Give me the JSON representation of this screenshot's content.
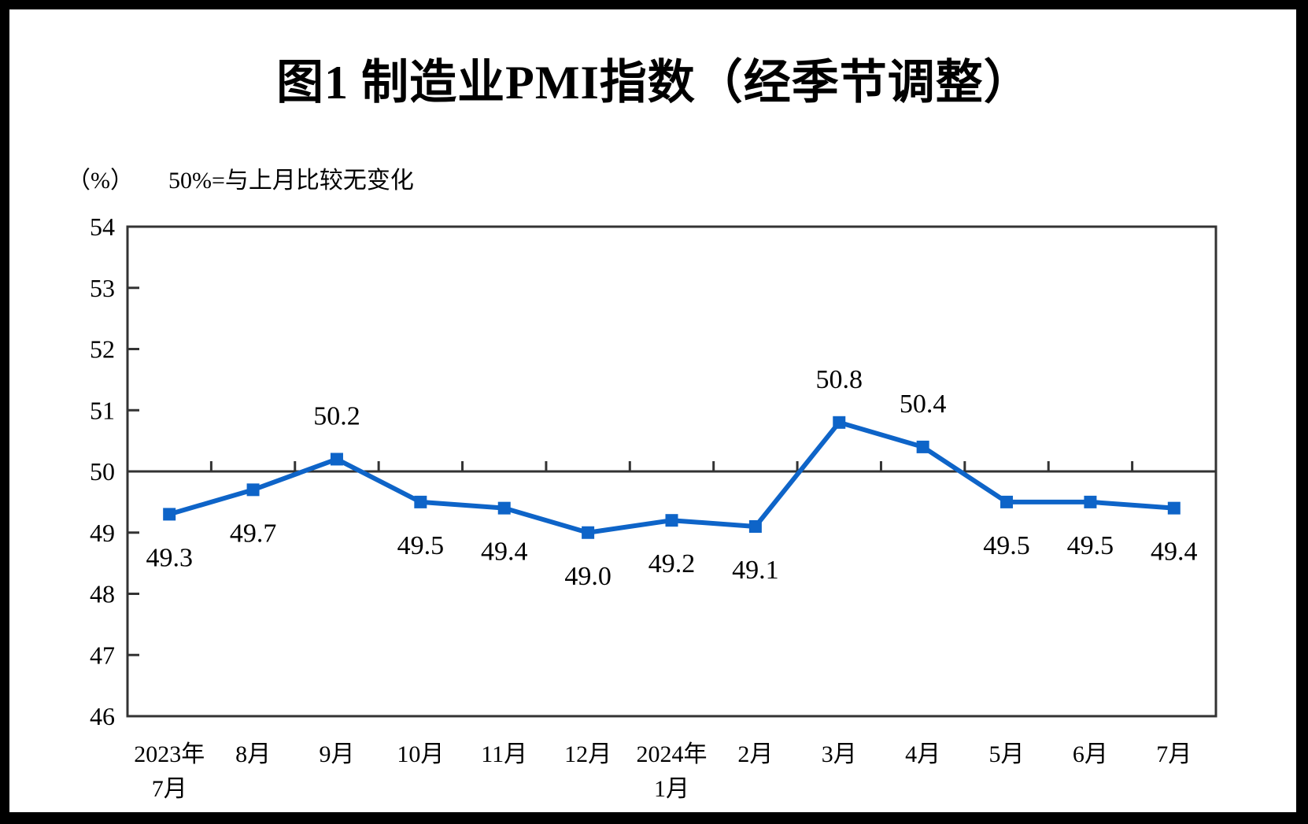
{
  "title": "图1  制造业PMI指数（经季节调整）",
  "subtitle": {
    "unit": "（%）",
    "note": "50%=与上月比较无变化"
  },
  "colors": {
    "line": "#0E64C8",
    "axis": "#333333",
    "text": "#000000",
    "background": "#FFFFFF",
    "outer_frame": "#000000"
  },
  "chart_data": {
    "type": "line",
    "title": "图1  制造业PMI指数（经季节调整）",
    "ylabel": "（%）",
    "annotation": "50%=与上月比较无变化",
    "categories": [
      [
        "2023年",
        "7月"
      ],
      [
        "8月"
      ],
      [
        "9月"
      ],
      [
        "10月"
      ],
      [
        "11月"
      ],
      [
        "12月"
      ],
      [
        "2024年",
        "1月"
      ],
      [
        "2月"
      ],
      [
        "3月"
      ],
      [
        "4月"
      ],
      [
        "5月"
      ],
      [
        "6月"
      ],
      [
        "7月"
      ]
    ],
    "series": [
      {
        "name": "制造业PMI",
        "values": [
          49.3,
          49.7,
          50.2,
          49.5,
          49.4,
          49.0,
          49.2,
          49.1,
          50.8,
          50.4,
          49.5,
          49.5,
          49.4
        ]
      }
    ],
    "data_labels": [
      "49.3",
      "49.7",
      "50.2",
      "49.5",
      "49.4",
      "49.0",
      "49.2",
      "49.1",
      "50.8",
      "50.4",
      "49.5",
      "49.5",
      "49.4"
    ],
    "label_positions": [
      "below",
      "below",
      "above",
      "below",
      "below",
      "below",
      "below",
      "below",
      "above",
      "above",
      "below",
      "below",
      "below"
    ],
    "ylim": [
      46,
      54
    ],
    "yticks": [
      46,
      47,
      48,
      49,
      50,
      51,
      52,
      53,
      54
    ],
    "reference_line": 50,
    "grid": false,
    "legend": "none",
    "marker": "square"
  }
}
